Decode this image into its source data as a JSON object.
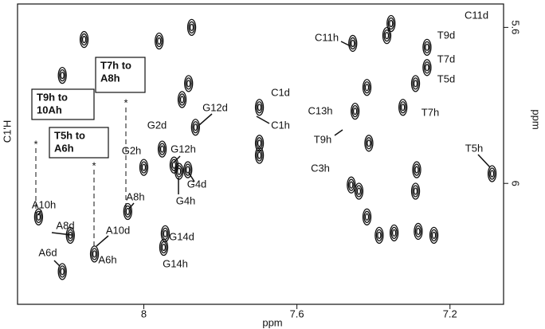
{
  "chart_data": {
    "type": "contour",
    "x_label": "ppm",
    "y_label": "ppm",
    "left_label": "C1'H",
    "xlim": [
      8.33,
      7.06
    ],
    "ylim": [
      5.54,
      6.31
    ],
    "xticks": [
      8.0,
      7.6,
      7.2
    ],
    "yticks": [
      5.6,
      6.0
    ],
    "x": [
      8.156,
      8.213,
      8.275,
      8.192,
      8.129,
      8.213,
      8.042,
      8.0,
      7.952,
      7.921,
      7.865,
      7.885,
      7.908,
      7.948,
      7.944,
      7.698,
      7.698,
      7.458,
      7.448,
      7.412,
      7.417,
      7.354,
      7.454,
      7.26,
      7.26,
      7.29,
      7.323,
      7.09,
      7.287,
      7.283,
      7.242,
      7.346,
      7.698,
      7.365,
      7.875,
      7.96,
      7.883,
      7.9,
      7.417,
      7.385,
      7.438,
      7.29
    ],
    "y": [
      5.631,
      5.723,
      6.086,
      6.133,
      6.181,
      6.226,
      6.072,
      5.959,
      5.912,
      5.953,
      5.856,
      5.965,
      5.969,
      6.164,
      6.129,
      5.805,
      5.928,
      6.004,
      5.815,
      5.897,
      5.754,
      5.59,
      5.641,
      5.651,
      5.703,
      5.744,
      5.805,
      5.975,
      5.965,
      6.123,
      6.133,
      6.127,
      5.897,
      5.621,
      5.6,
      5.635,
      5.744,
      5.785,
      6.086,
      6.133,
      6.02,
      6.02
    ],
    "annotations": [
      "C11d",
      "T9d",
      "T7d",
      "T5d",
      "C11h",
      "C1d",
      "C1h",
      "C13h",
      "T9h",
      "C3h",
      "T7h",
      "T5h",
      "G12d",
      "G2d",
      "G2h",
      "G12h",
      "G4d",
      "G4h",
      "A8h",
      "A10h",
      "A8d",
      "A10d",
      "A6h",
      "A6d",
      "G14d",
      "G14h"
    ],
    "noe_boxes": [
      {
        "lines": [
          "T7h to",
          "A8h"
        ]
      },
      {
        "lines": [
          "T9h    to",
          "10Ah"
        ]
      },
      {
        "lines": [
          "T5h to",
          "A6h"
        ]
      }
    ],
    "marker": "*"
  }
}
